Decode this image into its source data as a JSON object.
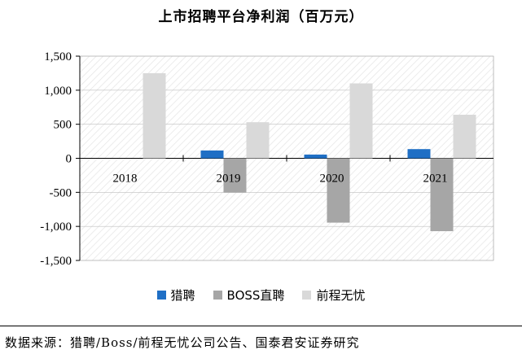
{
  "title": "上市招聘平台净利润（百万元）",
  "source": "数据来源：猎聘/Boss/前程无忧公司公告、国泰君安证券研究",
  "colors": {
    "liepin": "#1f6fc5",
    "boss": "#a6a6a6",
    "qiancheng": "#d9d9d9"
  },
  "chart_data": {
    "type": "bar",
    "title": "上市招聘平台净利润（百万元）",
    "categories": [
      "2018",
      "2019",
      "2020",
      "2021"
    ],
    "series": [
      {
        "name": "猎聘",
        "values": [
          null,
          115,
          55,
          135
        ]
      },
      {
        "name": "BOSS直聘",
        "values": [
          null,
          -505,
          -945,
          -1070
        ]
      },
      {
        "name": "前程无忧",
        "values": [
          1250,
          530,
          1100,
          640
        ]
      }
    ],
    "ylim": [
      -1500,
      1500
    ],
    "yticks": [
      "1,500",
      "1,000",
      "500",
      "0",
      "-500",
      "-1,000",
      "-1,500"
    ],
    "ytick_values": [
      1500,
      1000,
      500,
      0,
      -500,
      -1000,
      -1500
    ],
    "grid": true,
    "legend": "bottom"
  }
}
